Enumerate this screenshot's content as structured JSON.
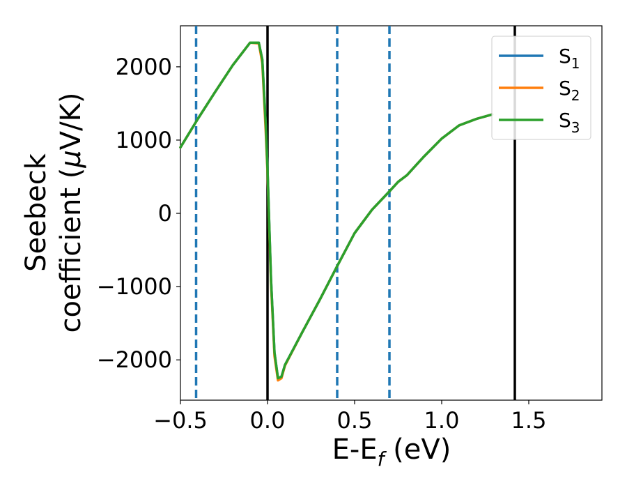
{
  "chart_data": {
    "type": "line",
    "xlabel": "E-E",
    "xlabel_subscript": "f",
    "xlabel_unit": " (eV)",
    "ylabel_line1": "Seebeck",
    "ylabel_line2_prefix": "coefficient  (",
    "ylabel_mu": "μ",
    "ylabel_line2_suffix": "V/K)",
    "xlim": [
      -0.5,
      1.92
    ],
    "ylim": [
      -2550,
      2560
    ],
    "xticks": [
      -0.5,
      0.0,
      0.5,
      1.0,
      1.5
    ],
    "xtick_labels": [
      "−0.5",
      "0.0",
      "0.5",
      "1.0",
      "1.5"
    ],
    "yticks": [
      -2000,
      -1000,
      0,
      1000,
      2000
    ],
    "ytick_labels": [
      "−2000",
      "−1000",
      "0",
      "1000",
      "2000"
    ],
    "grid": false,
    "legend_position": "top-right",
    "solid_vlines": [
      0.0,
      1.42
    ],
    "dashed_vlines": [
      -0.41,
      0.4,
      0.7
    ],
    "series": [
      {
        "name": "S",
        "subscript": "1",
        "color": "#1f77b4",
        "x": [
          -0.5,
          -0.4,
          -0.3,
          -0.2,
          -0.1,
          -0.05,
          -0.03,
          -0.01,
          0.0,
          0.02,
          0.04,
          0.06,
          0.08,
          0.1,
          0.2,
          0.3,
          0.4,
          0.5,
          0.6,
          0.7,
          0.75,
          0.8,
          0.85,
          0.9,
          1.0,
          1.1,
          1.2,
          1.29
        ],
        "y": [
          900,
          1290,
          1660,
          2020,
          2330,
          2330,
          2100,
          1200,
          600,
          -900,
          -1900,
          -2250,
          -2230,
          -2070,
          -1620,
          -1180,
          -720,
          -270,
          50,
          300,
          430,
          520,
          650,
          780,
          1020,
          1200,
          1290,
          1350
        ]
      },
      {
        "name": "S",
        "subscript": "2",
        "color": "#ff7f0e",
        "x": [
          -0.5,
          -0.4,
          -0.3,
          -0.2,
          -0.1,
          -0.05,
          -0.03,
          -0.01,
          0.0,
          0.02,
          0.04,
          0.06,
          0.08,
          0.1,
          0.2,
          0.3,
          0.4,
          0.5,
          0.6,
          0.7,
          0.75,
          0.8,
          0.85,
          0.9,
          1.0,
          1.1,
          1.2,
          1.29
        ],
        "y": [
          900,
          1290,
          1660,
          2020,
          2330,
          2320,
          2050,
          1100,
          550,
          -950,
          -1950,
          -2280,
          -2250,
          -2080,
          -1620,
          -1180,
          -720,
          -270,
          50,
          300,
          430,
          520,
          650,
          780,
          1020,
          1200,
          1290,
          1350
        ]
      },
      {
        "name": "S",
        "subscript": "3",
        "color": "#2ca02c",
        "x": [
          -0.5,
          -0.4,
          -0.3,
          -0.2,
          -0.1,
          -0.05,
          -0.03,
          -0.01,
          0.0,
          0.02,
          0.04,
          0.06,
          0.08,
          0.1,
          0.2,
          0.3,
          0.4,
          0.5,
          0.6,
          0.7,
          0.75,
          0.8,
          0.85,
          0.9,
          1.0,
          1.1,
          1.2,
          1.29
        ],
        "y": [
          900,
          1290,
          1660,
          2020,
          2330,
          2330,
          2100,
          1200,
          600,
          -900,
          -1900,
          -2250,
          -2230,
          -2070,
          -1620,
          -1180,
          -720,
          -270,
          50,
          300,
          430,
          520,
          650,
          780,
          1020,
          1200,
          1290,
          1350
        ]
      }
    ]
  }
}
